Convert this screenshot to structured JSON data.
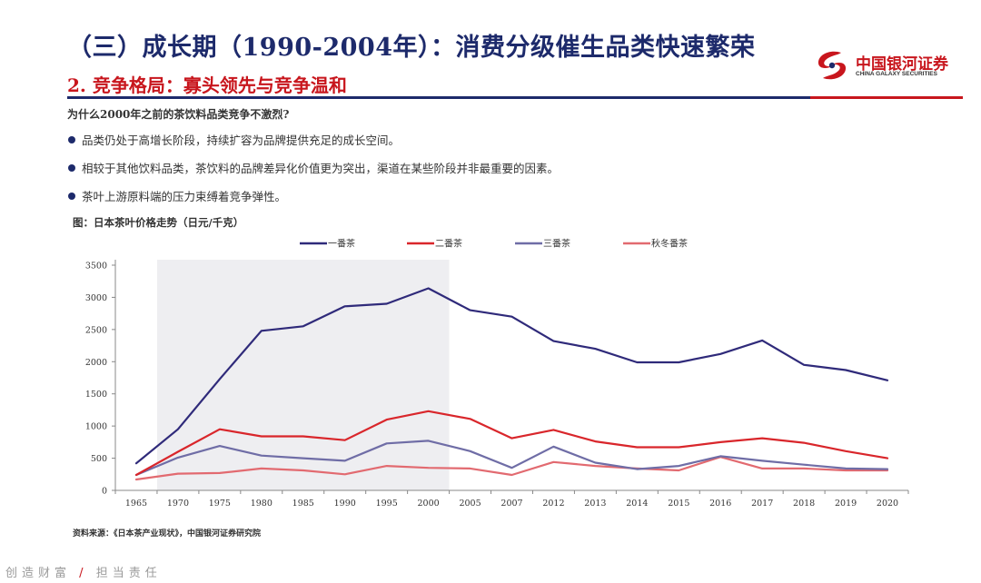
{
  "header": {
    "title": "（三）成长期（1990-2004年）：消费分级催生品类快速繁荣",
    "subtitle": "2. 竞争格局：寡头领先与竞争温和",
    "logo_cn": "中国银河证券",
    "logo_en": "CHINA GALAXY SECURITIES"
  },
  "body": {
    "question": "为什么2000年之前的茶饮料品类竞争不激烈?",
    "bullets": [
      "品类仍处于高增长阶段，持续扩容为品牌提供充足的成长空间。",
      "相较于其他饮料品类，茶饮料的品牌差异化价值更为突出，渠道在某些阶段并非最重要的因素。",
      "茶叶上游原料端的压力束缚着竞争弹性。"
    ],
    "figure_caption": "图：日本茶叶价格走势（日元/千克）",
    "source": "资料来源：《日本茶产业现状》，中国银河证券研究院"
  },
  "footer": {
    "left": "创造财富",
    "slash": "/",
    "right": "担当责任"
  },
  "colors": {
    "navy": "#1d2a6b",
    "red": "#c8161d",
    "shade": "#eeeef1"
  },
  "chart_data": {
    "type": "line",
    "title": "",
    "xlabel": "",
    "ylabel": "",
    "categories": [
      "1965",
      "1970",
      "1975",
      "1980",
      "1985",
      "1990",
      "1995",
      "2000",
      "2005",
      "2007",
      "2012",
      "2013",
      "2014",
      "2015",
      "2016",
      "2017",
      "2018",
      "2019",
      "2020"
    ],
    "ylim": [
      0,
      3500
    ],
    "yticks": [
      0,
      500,
      1000,
      1500,
      2000,
      2500,
      3000,
      3500
    ],
    "legend_position": "top",
    "shaded_range": [
      "1970",
      "2000"
    ],
    "series": [
      {
        "name": "一番茶",
        "color": "#2f2a7a",
        "values": [
          420,
          950,
          1730,
          2480,
          2550,
          2860,
          2900,
          3140,
          2800,
          2700,
          2320,
          2200,
          1990,
          1990,
          2120,
          2330,
          1950,
          1870,
          1710
        ]
      },
      {
        "name": "二番茶",
        "color": "#d9262b",
        "values": [
          240,
          600,
          950,
          840,
          840,
          780,
          1100,
          1230,
          1110,
          810,
          940,
          760,
          670,
          670,
          750,
          810,
          740,
          610,
          500
        ]
      },
      {
        "name": "三番茶",
        "color": "#6f6da6",
        "values": [
          240,
          510,
          690,
          540,
          500,
          460,
          730,
          770,
          610,
          350,
          680,
          430,
          330,
          380,
          530,
          460,
          400,
          340,
          330
        ]
      },
      {
        "name": "秋冬番茶",
        "color": "#e26a70",
        "values": [
          170,
          260,
          270,
          340,
          310,
          250,
          380,
          350,
          340,
          240,
          440,
          380,
          340,
          310,
          520,
          340,
          340,
          310,
          310
        ]
      }
    ]
  }
}
